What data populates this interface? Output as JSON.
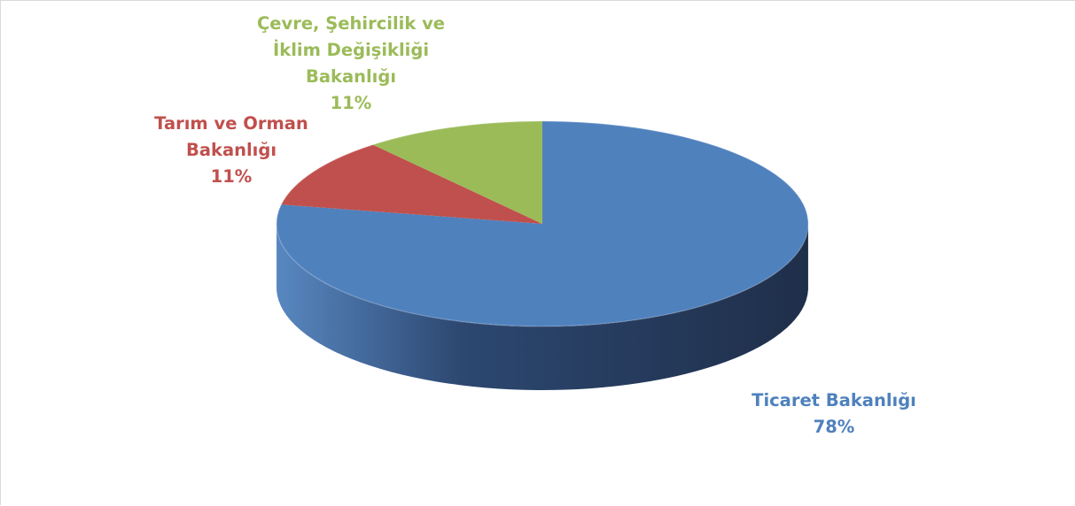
{
  "chart_data": {
    "type": "pie",
    "style": "3d",
    "title": "",
    "categories": [
      "Ticaret Bakanlığı",
      "Tarım ve Orman Bakanlığı",
      "Çevre, Şehircilik ve İklim Değişikliği Bakanlığı"
    ],
    "values": [
      78,
      11,
      11
    ],
    "slices": [
      {
        "label_lines": "Ticaret Bakanlığı",
        "percent_text": "78%",
        "value": 78,
        "color": "#4f81bd",
        "side_color": "#2c4770",
        "label_color": "#4f81bd"
      },
      {
        "label_lines": "Tarım ve Orman\nBakanlığı",
        "percent_text": "11%",
        "value": 11,
        "color": "#c0504d",
        "side_color": "#7a2f2d",
        "label_color": "#c0504d"
      },
      {
        "label_lines": "Çevre, Şehircilik ve\nİklim Değişikliği\nBakanlığı",
        "percent_text": "11%",
        "value": 11,
        "color": "#9bbb59",
        "side_color": "#5f7a33",
        "label_color": "#9bbb59"
      }
    ],
    "legend": "none",
    "data_labels": "outside"
  }
}
